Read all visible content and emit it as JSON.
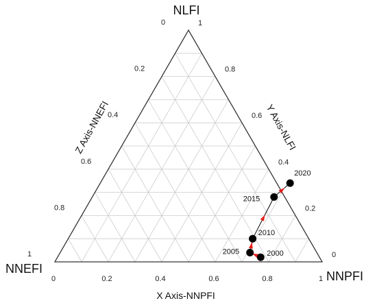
{
  "chart_data": {
    "type": "scatter",
    "subtype": "ternary",
    "vertices": {
      "top": "NLFI",
      "left": "NNEFI",
      "right": "NNPFI"
    },
    "axes": {
      "x": {
        "label": "X Axis-NNPFI",
        "range": [
          0,
          1
        ]
      },
      "y": {
        "label": "Y Axis-NLFI",
        "range": [
          0,
          1
        ]
      },
      "z": {
        "label": "Z Axis-NNEFI",
        "range": [
          0,
          1
        ]
      }
    },
    "bottom_ticks": [
      "0",
      "0.2",
      "0.4",
      "0.6",
      "0.8",
      "1"
    ],
    "right_ticks": [
      "0",
      "0.2",
      "0.4",
      "0.6",
      "0.8",
      "1"
    ],
    "left_ticks": [
      "0",
      "0.2",
      "0.4",
      "0.6",
      "0.8",
      "1"
    ],
    "grid": true,
    "points": [
      {
        "label": "2000",
        "nnpfi": 0.76,
        "nlfi": 0.02,
        "nnefi": 0.22
      },
      {
        "label": "2005",
        "nnpfi": 0.71,
        "nlfi": 0.04,
        "nnefi": 0.25
      },
      {
        "label": "2010",
        "nnpfi": 0.69,
        "nlfi": 0.1,
        "nnefi": 0.21
      },
      {
        "label": "2015",
        "nnpfi": 0.68,
        "nlfi": 0.28,
        "nnefi": 0.04
      },
      {
        "label": "2020",
        "nnpfi": 0.71,
        "nlfi": 0.34,
        "nnefi": -0.05
      }
    ],
    "colors": {
      "frame": "#333333",
      "grid": "#cccccc",
      "point": "#000000",
      "arrow": "#e8201a",
      "path": "#000000"
    }
  }
}
